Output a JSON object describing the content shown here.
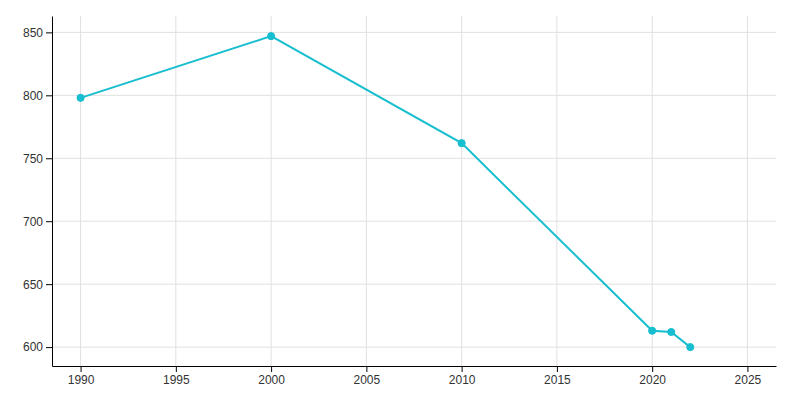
{
  "chart_data": {
    "type": "line",
    "x": [
      1990,
      2000,
      2010,
      2020,
      2021,
      2022
    ],
    "values": [
      798,
      847,
      762,
      613,
      612,
      600
    ],
    "color": "#17becf",
    "marker": "circle",
    "xlim": [
      1988.5,
      2026.5
    ],
    "ylim": [
      585,
      863
    ],
    "xticks": [
      1990,
      1995,
      2000,
      2005,
      2010,
      2015,
      2020,
      2025
    ],
    "yticks": [
      600,
      650,
      700,
      750,
      800,
      850
    ],
    "grid": true
  }
}
